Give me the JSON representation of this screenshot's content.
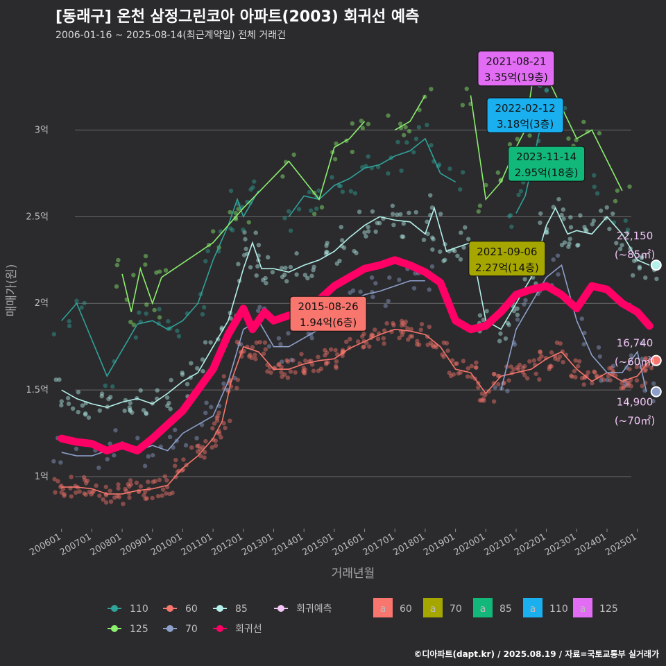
{
  "title": "[동래구] 온천 삼정그린코아 아파트(2003) 회귀선 예측",
  "subtitle": "2006-01-16 ~ 2025-08-14(최근계약일) 전체 거래건",
  "caption": "©디아파트(dapt.kr) / 2025.08.19 / 자료=국토교통부 실거래가",
  "chart_data": {
    "type": "scatter",
    "xlabel": "거래년월",
    "ylabel": "매매가(원)",
    "ylim": [
      0.7,
      3.45
    ],
    "xlim": [
      2005.8,
      2025.9
    ],
    "y_ticks": [
      {
        "v": 1.0,
        "label": "1억"
      },
      {
        "v": 1.5,
        "label": "1.5억"
      },
      {
        "v": 2.0,
        "label": "2억"
      },
      {
        "v": 2.5,
        "label": "2.5억"
      },
      {
        "v": 3.0,
        "label": "3억"
      }
    ],
    "x_ticks": [
      "200601",
      "200701",
      "200801",
      "200901",
      "201001",
      "201101",
      "201201",
      "201301",
      "201401",
      "201501",
      "201601",
      "201701",
      "201801",
      "201901",
      "202001",
      "202101",
      "202201",
      "202301",
      "202401",
      "202501"
    ],
    "colors": {
      "60": "#f8766d",
      "70": "#8da0cb",
      "85": "#b3f0ea",
      "110": "#2fa39a",
      "125": "#8cef6e",
      "regression": "#ff0066",
      "forecast": "#f2c6f7"
    },
    "series": [
      {
        "name": "60",
        "color": "#f8766d",
        "x": [
          2006.0,
          2006.5,
          2007.0,
          2007.5,
          2008.0,
          2008.5,
          2009.0,
          2009.5,
          2010.0,
          2010.5,
          2011.0,
          2011.3,
          2011.6,
          2012.0,
          2012.5,
          2013.0,
          2013.5,
          2014.0,
          2014.5,
          2015.0,
          2015.5,
          2016.0,
          2016.5,
          2017.0,
          2017.5,
          2018.0,
          2018.5,
          2019.0,
          2019.5,
          2020.0,
          2020.5,
          2021.0,
          2021.5,
          2022.0,
          2022.5,
          2023.0,
          2023.5,
          2024.0,
          2024.5,
          2025.0,
          2025.4
        ],
        "values": [
          0.94,
          0.94,
          0.93,
          0.9,
          0.9,
          0.92,
          0.93,
          0.95,
          1.05,
          1.12,
          1.22,
          1.32,
          1.55,
          1.75,
          1.72,
          1.62,
          1.62,
          1.65,
          1.67,
          1.68,
          1.74,
          1.78,
          1.82,
          1.85,
          1.84,
          1.82,
          1.75,
          1.62,
          1.6,
          1.48,
          1.58,
          1.6,
          1.62,
          1.68,
          1.72,
          1.62,
          1.55,
          1.6,
          1.55,
          1.58,
          1.67
        ]
      },
      {
        "name": "70",
        "color": "#8da0cb",
        "x": [
          2006.0,
          2006.5,
          2007.0,
          2007.5,
          2008.0,
          2008.5,
          2009.0,
          2009.5,
          2010.0,
          2010.5,
          2011.0,
          2011.5,
          2012.0,
          2012.5,
          2013.0,
          2013.5,
          2014.0,
          2014.5,
          2015.0,
          2015.5,
          2016.0,
          2016.5,
          2017.0,
          2017.5,
          2018.0,
          2019.0,
          2020.0,
          2020.5,
          2021.0,
          2021.5,
          2022.0,
          2022.5,
          2023.0,
          2023.5,
          2024.0,
          2024.5,
          2025.0,
          2025.3
        ],
        "values": [
          1.14,
          1.12,
          1.12,
          1.15,
          1.2,
          1.15,
          1.18,
          1.15,
          1.25,
          1.3,
          1.35,
          1.55,
          1.85,
          1.9,
          1.75,
          1.75,
          1.8,
          1.85,
          1.95,
          2.0,
          2.05,
          2.07,
          2.1,
          2.13,
          2.13,
          null,
          null,
          1.5,
          1.85,
          2.0,
          2.15,
          2.22,
          1.9,
          1.7,
          1.6,
          1.6,
          1.72,
          1.49
        ]
      },
      {
        "name": "85",
        "color": "#b3f0ea",
        "x": [
          2006.0,
          2006.5,
          2007.0,
          2007.5,
          2008.0,
          2008.5,
          2009.0,
          2009.5,
          2010.0,
          2010.5,
          2011.0,
          2011.5,
          2012.0,
          2012.3,
          2012.6,
          2013.0,
          2013.5,
          2014.0,
          2014.5,
          2015.0,
          2015.5,
          2016.0,
          2016.5,
          2017.0,
          2017.5,
          2018.0,
          2018.3,
          2018.7,
          2019.0,
          2019.5,
          2020.0,
          2020.5,
          2021.0,
          2021.5,
          2022.0,
          2022.3,
          2022.7,
          2023.0,
          2023.5,
          2024.0,
          2024.5,
          2025.0,
          2025.4
        ],
        "values": [
          1.5,
          1.45,
          1.42,
          1.4,
          1.43,
          1.45,
          1.42,
          1.48,
          1.55,
          1.6,
          1.75,
          1.9,
          2.2,
          2.35,
          2.2,
          2.2,
          2.18,
          2.22,
          2.25,
          2.3,
          2.38,
          2.45,
          2.5,
          2.48,
          2.47,
          2.4,
          2.55,
          2.3,
          2.32,
          2.35,
          1.9,
          1.85,
          2.0,
          2.15,
          2.45,
          2.55,
          2.4,
          2.42,
          2.4,
          2.5,
          2.4,
          2.25,
          2.22
        ]
      },
      {
        "name": "110",
        "color": "#2fa39a",
        "x": [
          2006.0,
          2006.5,
          2007.5,
          2008.5,
          2009.0,
          2009.5,
          2010.0,
          2010.5,
          2011.0,
          2011.5,
          2011.8,
          2012.0,
          2012.5,
          2013.0,
          2013.5,
          2014.0,
          2014.5,
          2015.0,
          2015.5,
          2016.0,
          2016.5,
          2017.0,
          2017.5,
          2018.0,
          2018.5,
          2019.0,
          2020.0,
          2020.5,
          2021.0,
          2021.3,
          2021.6,
          2022.0,
          2022.5,
          2023.0,
          2023.5,
          2024.0,
          2024.5
        ],
        "values": [
          1.9,
          2.0,
          1.58,
          1.88,
          1.9,
          1.85,
          1.9,
          2.0,
          2.25,
          2.45,
          2.6,
          2.5,
          2.65,
          null,
          2.5,
          2.62,
          2.6,
          2.68,
          2.72,
          2.78,
          2.8,
          2.85,
          2.88,
          2.95,
          2.75,
          2.7,
          null,
          null,
          2.52,
          2.62,
          2.85,
          3.18,
          3.18,
          null,
          2.65,
          null,
          2.5
        ]
      },
      {
        "name": "125",
        "color": "#8cef6e",
        "x": [
          2008.0,
          2008.3,
          2008.6,
          2009.0,
          2009.3,
          2011.0,
          2011.5,
          2012.0,
          2013.5,
          2014.5,
          2015.0,
          2015.5,
          2016.0,
          2016.5,
          2017.0,
          2017.5,
          2018.0,
          2019.0,
          2019.5,
          2020.0,
          2020.5,
          2021.0,
          2021.3,
          2021.6,
          2021.9,
          2023.0,
          2023.5,
          2024.5
        ],
        "values": [
          2.17,
          1.95,
          2.2,
          2.0,
          2.15,
          2.35,
          2.45,
          2.55,
          2.82,
          2.6,
          2.9,
          2.95,
          3.05,
          null,
          3.0,
          3.05,
          3.2,
          null,
          3.2,
          2.6,
          2.7,
          2.9,
          3.0,
          3.35,
          3.35,
          2.95,
          3.0,
          2.65
        ]
      }
    ],
    "regression": {
      "name": "회귀선",
      "color": "#ff0066",
      "x": [
        2006.0,
        2006.5,
        2007.0,
        2007.5,
        2008.0,
        2008.5,
        2009.0,
        2009.5,
        2010.0,
        2010.5,
        2011.0,
        2011.5,
        2012.0,
        2012.3,
        2012.7,
        2013.0,
        2013.5,
        2014.0,
        2014.5,
        2015.0,
        2015.5,
        2016.0,
        2016.5,
        2017.0,
        2017.5,
        2018.0,
        2018.5,
        2019.0,
        2019.5,
        2020.0,
        2020.5,
        2021.0,
        2021.5,
        2022.0,
        2022.5,
        2023.0,
        2023.5,
        2024.0,
        2024.5,
        2025.0,
        2025.4
      ],
      "values": [
        1.22,
        1.2,
        1.19,
        1.15,
        1.18,
        1.15,
        1.22,
        1.3,
        1.38,
        1.5,
        1.62,
        1.82,
        1.97,
        1.85,
        1.95,
        1.9,
        1.93,
        1.94,
        2.02,
        2.1,
        2.15,
        2.2,
        2.22,
        2.25,
        2.22,
        2.18,
        2.12,
        1.9,
        1.85,
        1.87,
        1.95,
        2.05,
        2.08,
        2.1,
        2.05,
        1.97,
        2.1,
        2.08,
        2.0,
        1.95,
        1.87
      ]
    },
    "forecast": [
      {
        "size": "85",
        "value": "22,150",
        "area": "(~85㎡)",
        "y": 2.22,
        "color": "#b3f0ea"
      },
      {
        "size": "60",
        "value": "16,740",
        "area": "(~60㎡)",
        "y": 1.67,
        "color": "#f8766d"
      },
      {
        "size": "70",
        "value": "14,900",
        "area": "(~70㎡)",
        "y": 1.49,
        "color": "#8da0cb"
      }
    ],
    "annotations": [
      {
        "date": "2021-08-21",
        "text": "3.35억(19층)",
        "size": "125",
        "color": "#e26cf3"
      },
      {
        "date": "2022-02-12",
        "text": "3.18억(3층)",
        "size": "110",
        "color": "#1ab0f0"
      },
      {
        "date": "2023-11-14",
        "text": "2.95억(18층)",
        "size": "85",
        "color": "#12b87a"
      },
      {
        "date": "2021-09-06",
        "text": "2.27억(14층)",
        "size": "70",
        "color": "#a6a600"
      },
      {
        "date": "2015-08-26",
        "text": "1.94억(6층)",
        "size": "60",
        "color": "#f8766d"
      }
    ],
    "legend": {
      "points": [
        "110",
        "60",
        "85",
        "회귀예측",
        "125",
        "70",
        "회귀선"
      ],
      "labels": [
        {
          "letter": "a",
          "size": "60",
          "color": "#f8766d"
        },
        {
          "letter": "a",
          "size": "70",
          "color": "#a6a600"
        },
        {
          "letter": "a",
          "size": "85",
          "color": "#12b87a"
        },
        {
          "letter": "a",
          "size": "110",
          "color": "#1ab0f0"
        },
        {
          "letter": "a",
          "size": "125",
          "color": "#e26cf3"
        }
      ]
    }
  }
}
